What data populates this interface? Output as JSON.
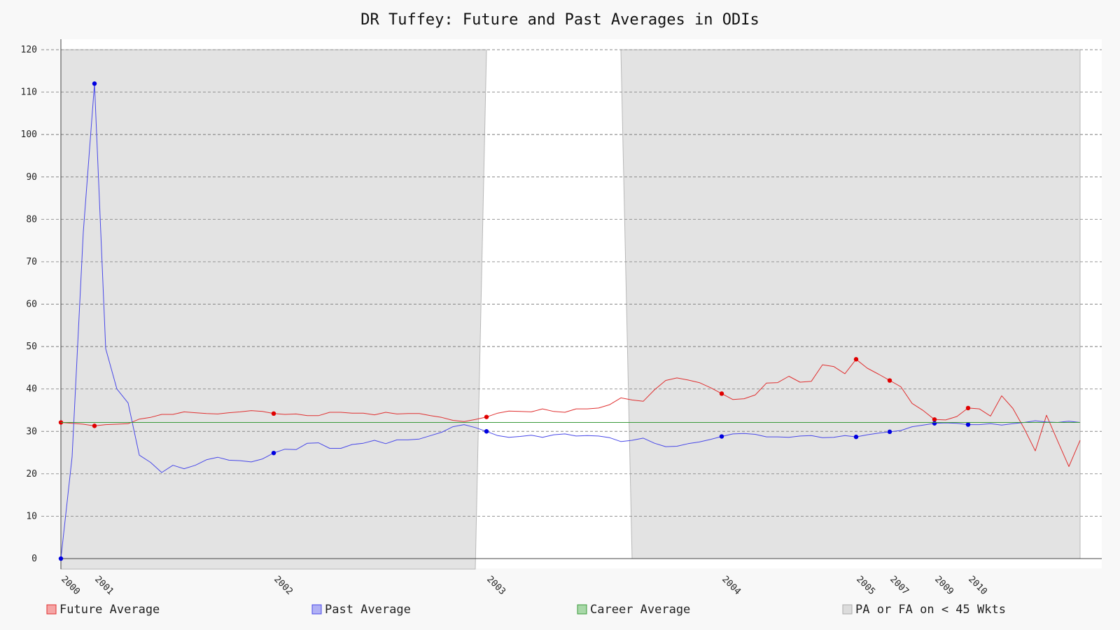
{
  "chart_data": {
    "type": "line",
    "title": "DR Tuffey: Future and Past Averages in ODIs",
    "xlabel": "",
    "ylabel": "",
    "ylim": [
      0,
      120
    ],
    "yticks": [
      0,
      10,
      20,
      30,
      40,
      50,
      60,
      70,
      80,
      90,
      100,
      110,
      120
    ],
    "grid": true,
    "legend_position": "bottom",
    "x_tick_labels": [
      {
        "match": 1,
        "label": "2000"
      },
      {
        "match": 4,
        "label": "2001"
      },
      {
        "match": 20,
        "label": "2002"
      },
      {
        "match": 39,
        "label": "2003"
      },
      {
        "match": 60,
        "label": "2004"
      },
      {
        "match": 72,
        "label": "2005"
      },
      {
        "match": 75,
        "label": "2007"
      },
      {
        "match": 79,
        "label": "2009"
      },
      {
        "match": 82,
        "label": "2010"
      }
    ],
    "x_range": [
      1,
      92
    ],
    "shaded_regions": [
      {
        "x": [
          1,
          39,
          38,
          1
        ],
        "label": "PA or FA on < 45 Wkts",
        "side": "left"
      },
      {
        "x": [
          51,
          52,
          92,
          92
        ],
        "label": "PA or FA on < 45 Wkts",
        "side": "right"
      }
    ],
    "series": [
      {
        "name": "Future Average",
        "color": "#e03030",
        "x": [
          1,
          2,
          3,
          4,
          5,
          6,
          7,
          8,
          9,
          10,
          11,
          12,
          13,
          14,
          15,
          16,
          17,
          18,
          19,
          20,
          21,
          22,
          23,
          24,
          25,
          26,
          27,
          28,
          29,
          30,
          31,
          32,
          33,
          34,
          35,
          36,
          37,
          38,
          39,
          40,
          41,
          42,
          43,
          44,
          45,
          46,
          47,
          48,
          49,
          50,
          51,
          52,
          53,
          54,
          55,
          56,
          57,
          58,
          59,
          60,
          61,
          62,
          63,
          64,
          65,
          66,
          67,
          68,
          69,
          70,
          71,
          72,
          73,
          74,
          75,
          76,
          77,
          78,
          79,
          80,
          81,
          82,
          83,
          84,
          85,
          86,
          87,
          88,
          89,
          90,
          91,
          92
        ],
        "values": [
          32.1,
          31.9,
          31.7,
          31.3,
          31.6,
          31.7,
          31.8,
          32.9,
          33.3,
          34.0,
          34.0,
          34.6,
          34.4,
          34.2,
          34.1,
          34.4,
          34.6,
          34.9,
          34.7,
          34.2,
          34.0,
          34.1,
          33.7,
          33.7,
          34.5,
          34.5,
          34.3,
          34.3,
          33.9,
          34.5,
          34.1,
          34.2,
          34.2,
          33.7,
          33.3,
          32.6,
          32.3,
          32.8,
          33.4,
          34.3,
          34.8,
          34.7,
          34.6,
          35.3,
          34.7,
          34.5,
          35.3,
          35.3,
          35.5,
          36.3,
          37.9,
          37.4,
          37.1,
          39.8,
          42.0,
          42.6,
          42.1,
          41.5,
          40.3,
          38.9,
          37.5,
          37.7,
          38.6,
          41.4,
          41.5,
          43.0,
          41.6,
          41.8,
          45.7,
          45.3,
          43.6,
          47.0,
          44.9,
          43.5,
          42.0,
          40.5,
          36.6,
          34.9,
          32.8,
          32.7,
          33.5,
          35.5,
          35.3,
          33.6,
          38.4,
          35.4,
          30.7,
          25.4,
          33.8,
          27.7,
          21.7,
          27.9
        ],
        "markers": [
          1,
          4,
          20,
          39,
          60,
          72,
          75,
          79,
          82
        ]
      },
      {
        "name": "Past Average",
        "color": "#4848e8",
        "x": [
          1,
          2,
          3,
          4,
          5,
          6,
          7,
          8,
          9,
          10,
          11,
          12,
          13,
          14,
          15,
          16,
          17,
          18,
          19,
          20,
          21,
          22,
          23,
          24,
          25,
          26,
          27,
          28,
          29,
          30,
          31,
          32,
          33,
          34,
          35,
          36,
          37,
          38,
          39,
          40,
          41,
          42,
          43,
          44,
          45,
          46,
          47,
          48,
          49,
          50,
          51,
          52,
          53,
          54,
          55,
          56,
          57,
          58,
          59,
          60,
          61,
          62,
          63,
          64,
          65,
          66,
          67,
          68,
          69,
          70,
          71,
          72,
          73,
          74,
          75,
          76,
          77,
          78,
          79,
          80,
          81,
          82,
          83,
          84,
          85,
          86,
          87,
          88,
          89,
          90,
          91,
          92
        ],
        "values": [
          0.0,
          24.0,
          77.0,
          112.0,
          49.5,
          40.0,
          36.7,
          24.4,
          22.7,
          20.3,
          22.0,
          21.2,
          22.0,
          23.3,
          23.9,
          23.2,
          23.1,
          22.8,
          23.5,
          24.9,
          25.8,
          25.7,
          27.2,
          27.3,
          26.0,
          26.0,
          26.9,
          27.2,
          27.9,
          27.1,
          28.0,
          28.0,
          28.2,
          29.0,
          29.8,
          31.1,
          31.6,
          30.9,
          30.0,
          29.0,
          28.6,
          28.8,
          29.1,
          28.6,
          29.2,
          29.4,
          28.9,
          29.0,
          28.9,
          28.5,
          27.6,
          27.9,
          28.4,
          27.2,
          26.4,
          26.5,
          27.1,
          27.5,
          28.1,
          28.8,
          29.4,
          29.5,
          29.3,
          28.7,
          28.7,
          28.6,
          28.9,
          29.0,
          28.5,
          28.6,
          29.0,
          28.7,
          29.2,
          29.6,
          29.9,
          30.2,
          31.1,
          31.5,
          31.9,
          32.0,
          31.9,
          31.6,
          31.6,
          31.8,
          31.5,
          31.8,
          32.1,
          32.5,
          32.2,
          32.1,
          32.4,
          32.1
        ],
        "markers": [
          1,
          4,
          20,
          39,
          60,
          72,
          75,
          79,
          82
        ]
      },
      {
        "name": "Career Average",
        "color": "#3a9a3a",
        "x": [
          1,
          92
        ],
        "values": [
          32.1,
          32.1
        ]
      }
    ]
  },
  "legend": [
    {
      "label": "Future Average",
      "fill": "#f5a5a5",
      "stroke": "#e03030"
    },
    {
      "label": "Past Average",
      "fill": "#b0b0f5",
      "stroke": "#4848e8"
    },
    {
      "label": "Career Average",
      "fill": "#a8d8a8",
      "stroke": "#3a9a3a"
    },
    {
      "label": "PA or FA on < 45 Wkts",
      "fill": "#dcdcdc",
      "stroke": "#aaaaaa"
    }
  ],
  "colors": {
    "background": "#f8f8f8",
    "plot_background": "#ffffff",
    "shade": "#e3e3e3",
    "grid": "#888888",
    "axis": "#444444"
  }
}
